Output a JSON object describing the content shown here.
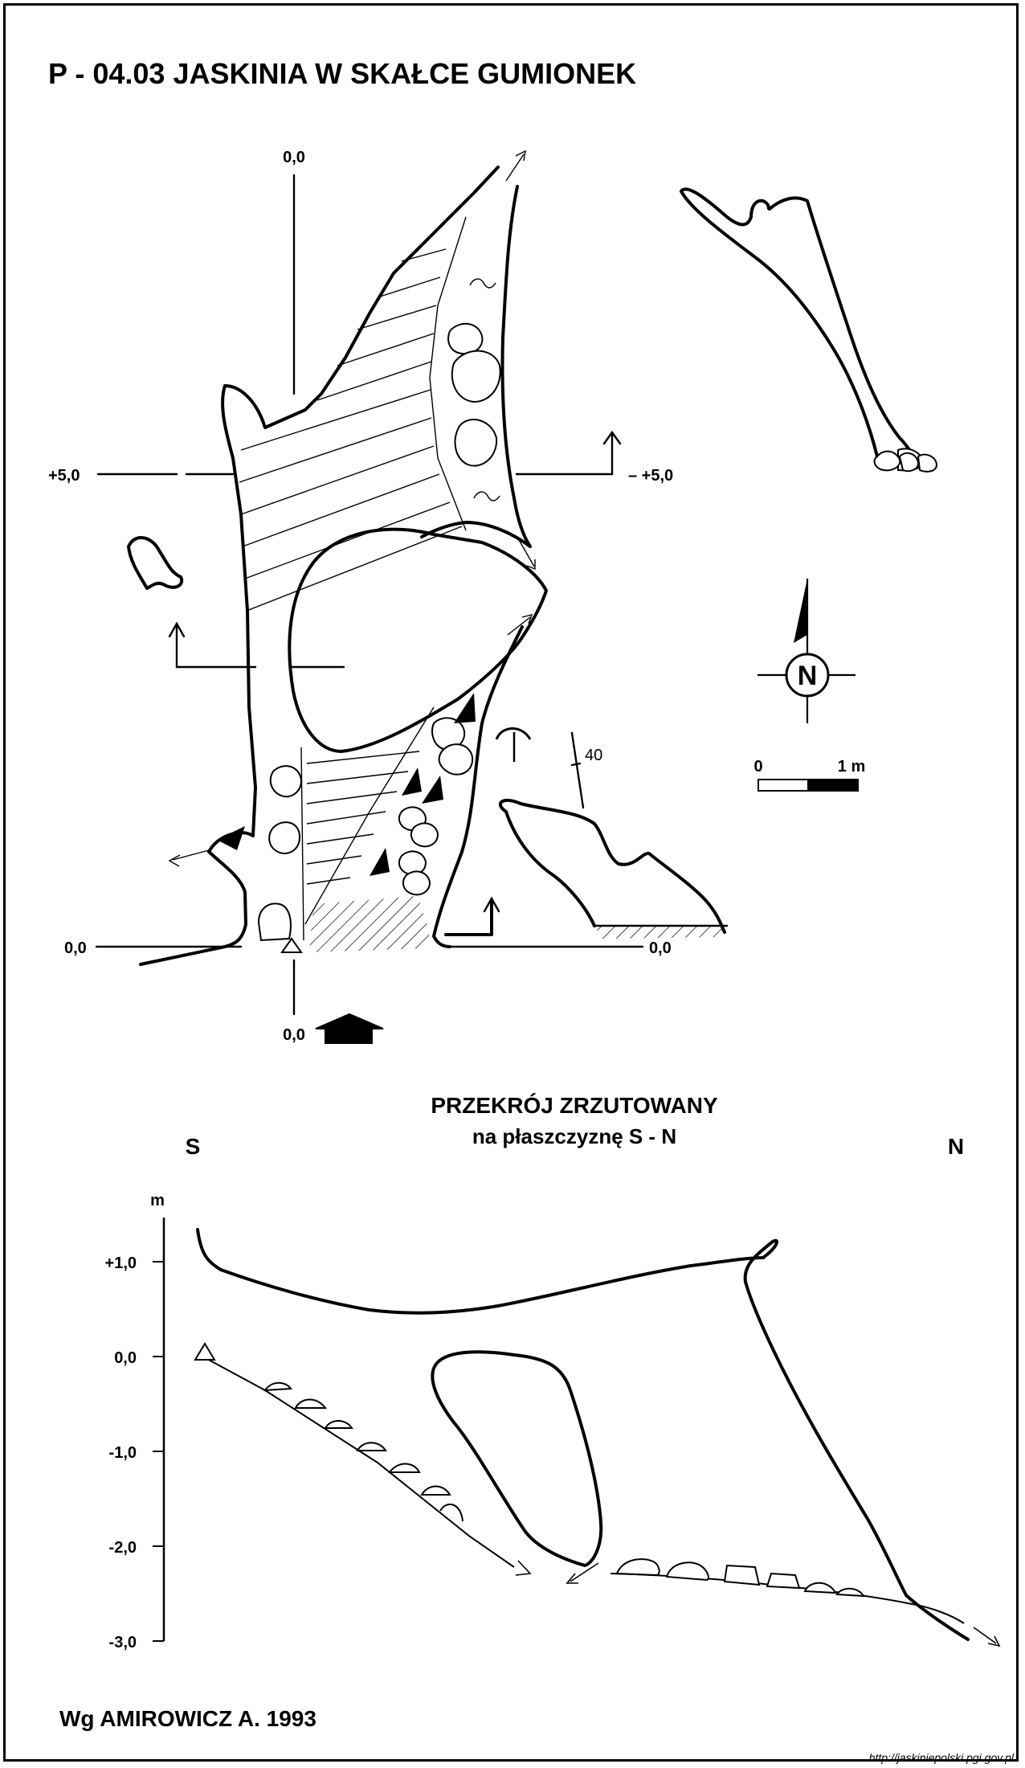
{
  "title": "P - 04.03  JASKINIA W SKAŁCE GUMIONEK",
  "plan": {
    "labels": {
      "top_zero": "0,0",
      "left_plus5": "+5,0",
      "right_plus5": "– +5,0",
      "left_zero": "0,0",
      "right_zero": "0,0",
      "bottom_zero": "0,0",
      "dip": "40"
    },
    "north_letter": "N",
    "scale": {
      "zero": "0",
      "one": "1 m"
    }
  },
  "section": {
    "title": "PRZEKRÓJ ZRZUTOWANY",
    "subtitle": "na płaszczyznę S - N",
    "south": "S",
    "north": "N",
    "axis_unit": "m",
    "axis_ticks": [
      "+1,0",
      "0,0",
      "-1,0",
      "-2,0",
      "-3,0"
    ]
  },
  "author": "Wg AMIROWICZ A. 1993",
  "source": "http://jaskiniepolski.pgi.gov.pl",
  "icons": [
    "north-arrow-icon",
    "entrance-arrow-icon",
    "overhang-symbol-icon",
    "triangle-datum-icon"
  ]
}
